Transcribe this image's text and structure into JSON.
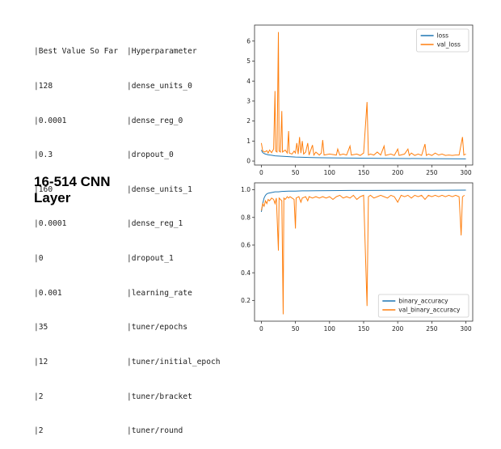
{
  "table": {
    "header": [
      "|Best Value So Far",
      "|Hyperparameter"
    ],
    "rows": [
      [
        "|128",
        "|dense_units_0"
      ],
      [
        "|0.0001",
        "|dense_reg_0"
      ],
      [
        "|0.3",
        "|dropout_0"
      ],
      [
        "|160",
        "|dense_units_1"
      ],
      [
        "|0.0001",
        "|dense_reg_1"
      ],
      [
        "|0",
        "|dropout_1"
      ],
      [
        "|0.001",
        "|learning_rate"
      ],
      [
        "|35",
        "|tuner/epochs"
      ],
      [
        "|12",
        "|tuner/initial_epoch"
      ],
      [
        "|2",
        "|tuner/bracket"
      ],
      [
        "|2",
        "|tuner/round"
      ]
    ]
  },
  "caption": {
    "line1": "16-514 CNN",
    "line2": "Layer"
  },
  "chart_data": [
    {
      "type": "line",
      "x_ticks": [
        0,
        50,
        100,
        150,
        200,
        250,
        300
      ],
      "y_ticks": [
        0,
        1,
        2,
        3,
        4,
        5,
        6
      ],
      "xlim": [
        -10,
        310
      ],
      "ylim": [
        -0.2,
        6.8
      ],
      "legend_position": "top-right",
      "series": [
        {
          "name": "loss",
          "color": "#1f77b4",
          "points": [
            [
              0,
              0.55
            ],
            [
              2,
              0.42
            ],
            [
              5,
              0.36
            ],
            [
              10,
              0.31
            ],
            [
              15,
              0.29
            ],
            [
              20,
              0.26
            ],
            [
              30,
              0.24
            ],
            [
              40,
              0.22
            ],
            [
              50,
              0.2
            ],
            [
              60,
              0.19
            ],
            [
              80,
              0.17
            ],
            [
              100,
              0.16
            ],
            [
              130,
              0.15
            ],
            [
              160,
              0.14
            ],
            [
              200,
              0.13
            ],
            [
              250,
              0.12
            ],
            [
              300,
              0.11
            ]
          ]
        },
        {
          "name": "val_loss",
          "color": "#ff7f0e",
          "points": [
            [
              0,
              0.9
            ],
            [
              2,
              0.5
            ],
            [
              5,
              0.45
            ],
            [
              8,
              0.52
            ],
            [
              10,
              0.4
            ],
            [
              12,
              0.55
            ],
            [
              15,
              0.42
            ],
            [
              18,
              0.6
            ],
            [
              20,
              3.5
            ],
            [
              21,
              0.5
            ],
            [
              23,
              0.45
            ],
            [
              25,
              6.45
            ],
            [
              26,
              0.5
            ],
            [
              28,
              0.45
            ],
            [
              30,
              2.5
            ],
            [
              31,
              0.45
            ],
            [
              35,
              0.55
            ],
            [
              38,
              0.4
            ],
            [
              40,
              1.5
            ],
            [
              41,
              0.4
            ],
            [
              45,
              0.35
            ],
            [
              48,
              0.5
            ],
            [
              50,
              0.4
            ],
            [
              52,
              0.9
            ],
            [
              54,
              0.35
            ],
            [
              56,
              1.2
            ],
            [
              58,
              0.4
            ],
            [
              60,
              1.0
            ],
            [
              62,
              0.35
            ],
            [
              65,
              0.45
            ],
            [
              68,
              0.9
            ],
            [
              70,
              0.3
            ],
            [
              75,
              0.8
            ],
            [
              77,
              0.3
            ],
            [
              80,
              0.45
            ],
            [
              85,
              0.3
            ],
            [
              88,
              0.4
            ],
            [
              90,
              1.05
            ],
            [
              92,
              0.3
            ],
            [
              100,
              0.35
            ],
            [
              110,
              0.3
            ],
            [
              112,
              0.6
            ],
            [
              115,
              0.3
            ],
            [
              120,
              0.35
            ],
            [
              125,
              0.3
            ],
            [
              130,
              0.75
            ],
            [
              132,
              0.3
            ],
            [
              140,
              0.35
            ],
            [
              145,
              0.28
            ],
            [
              150,
              0.4
            ],
            [
              155,
              2.95
            ],
            [
              157,
              0.3
            ],
            [
              160,
              0.35
            ],
            [
              165,
              0.3
            ],
            [
              170,
              0.45
            ],
            [
              175,
              0.3
            ],
            [
              180,
              0.75
            ],
            [
              182,
              0.28
            ],
            [
              190,
              0.35
            ],
            [
              195,
              0.28
            ],
            [
              200,
              0.6
            ],
            [
              202,
              0.28
            ],
            [
              210,
              0.35
            ],
            [
              215,
              0.6
            ],
            [
              217,
              0.28
            ],
            [
              220,
              0.4
            ],
            [
              225,
              0.28
            ],
            [
              230,
              0.35
            ],
            [
              235,
              0.28
            ],
            [
              240,
              0.85
            ],
            [
              242,
              0.28
            ],
            [
              245,
              0.35
            ],
            [
              250,
              0.28
            ],
            [
              255,
              0.4
            ],
            [
              260,
              0.3
            ],
            [
              265,
              0.35
            ],
            [
              270,
              0.28
            ],
            [
              275,
              0.3
            ],
            [
              280,
              0.28
            ],
            [
              285,
              0.3
            ],
            [
              290,
              0.3
            ],
            [
              295,
              1.2
            ],
            [
              297,
              0.3
            ],
            [
              300,
              0.35
            ]
          ]
        }
      ]
    },
    {
      "type": "line",
      "x_ticks": [
        0,
        50,
        100,
        150,
        200,
        250,
        300
      ],
      "y_ticks": [
        0.2,
        0.4,
        0.6,
        0.8,
        1.0
      ],
      "xlim": [
        -10,
        310
      ],
      "ylim": [
        0.05,
        1.05
      ],
      "legend_position": "bottom-right",
      "series": [
        {
          "name": "binary_accuracy",
          "color": "#1f77b4",
          "points": [
            [
              0,
              0.84
            ],
            [
              2,
              0.9
            ],
            [
              4,
              0.94
            ],
            [
              6,
              0.96
            ],
            [
              8,
              0.97
            ],
            [
              10,
              0.975
            ],
            [
              15,
              0.98
            ],
            [
              20,
              0.985
            ],
            [
              25,
              0.985
            ],
            [
              30,
              0.988
            ],
            [
              40,
              0.99
            ],
            [
              50,
              0.99
            ],
            [
              60,
              0.992
            ],
            [
              80,
              0.993
            ],
            [
              100,
              0.994
            ],
            [
              130,
              0.995
            ],
            [
              160,
              0.995
            ],
            [
              200,
              0.996
            ],
            [
              250,
              0.996
            ],
            [
              300,
              0.997
            ]
          ]
        },
        {
          "name": "val_binary_accuracy",
          "color": "#ff7f0e",
          "points": [
            [
              0,
              0.85
            ],
            [
              2,
              0.9
            ],
            [
              4,
              0.88
            ],
            [
              6,
              0.92
            ],
            [
              8,
              0.9
            ],
            [
              10,
              0.93
            ],
            [
              12,
              0.92
            ],
            [
              15,
              0.94
            ],
            [
              18,
              0.93
            ],
            [
              20,
              0.9
            ],
            [
              22,
              0.94
            ],
            [
              25,
              0.56
            ],
            [
              26,
              0.94
            ],
            [
              28,
              0.93
            ],
            [
              30,
              0.92
            ],
            [
              32,
              0.1
            ],
            [
              33,
              0.94
            ],
            [
              35,
              0.93
            ],
            [
              38,
              0.95
            ],
            [
              40,
              0.94
            ],
            [
              42,
              0.95
            ],
            [
              45,
              0.94
            ],
            [
              48,
              0.93
            ],
            [
              50,
              0.72
            ],
            [
              51,
              0.94
            ],
            [
              55,
              0.95
            ],
            [
              58,
              0.91
            ],
            [
              60,
              0.94
            ],
            [
              65,
              0.95
            ],
            [
              68,
              0.92
            ],
            [
              70,
              0.95
            ],
            [
              75,
              0.94
            ],
            [
              80,
              0.95
            ],
            [
              85,
              0.94
            ],
            [
              90,
              0.95
            ],
            [
              95,
              0.94
            ],
            [
              100,
              0.95
            ],
            [
              105,
              0.93
            ],
            [
              110,
              0.95
            ],
            [
              115,
              0.96
            ],
            [
              120,
              0.94
            ],
            [
              125,
              0.95
            ],
            [
              130,
              0.94
            ],
            [
              135,
              0.96
            ],
            [
              140,
              0.93
            ],
            [
              145,
              0.95
            ],
            [
              150,
              0.96
            ],
            [
              155,
              0.16
            ],
            [
              157,
              0.95
            ],
            [
              160,
              0.96
            ],
            [
              165,
              0.94
            ],
            [
              170,
              0.95
            ],
            [
              175,
              0.96
            ],
            [
              180,
              0.95
            ],
            [
              185,
              0.94
            ],
            [
              190,
              0.96
            ],
            [
              195,
              0.95
            ],
            [
              200,
              0.91
            ],
            [
              205,
              0.96
            ],
            [
              210,
              0.95
            ],
            [
              215,
              0.96
            ],
            [
              220,
              0.94
            ],
            [
              225,
              0.96
            ],
            [
              230,
              0.95
            ],
            [
              235,
              0.96
            ],
            [
              240,
              0.93
            ],
            [
              245,
              0.96
            ],
            [
              250,
              0.95
            ],
            [
              255,
              0.96
            ],
            [
              260,
              0.95
            ],
            [
              265,
              0.96
            ],
            [
              270,
              0.95
            ],
            [
              275,
              0.96
            ],
            [
              280,
              0.95
            ],
            [
              285,
              0.96
            ],
            [
              290,
              0.95
            ],
            [
              293,
              0.67
            ],
            [
              295,
              0.95
            ],
            [
              298,
              0.96
            ]
          ]
        }
      ]
    }
  ]
}
